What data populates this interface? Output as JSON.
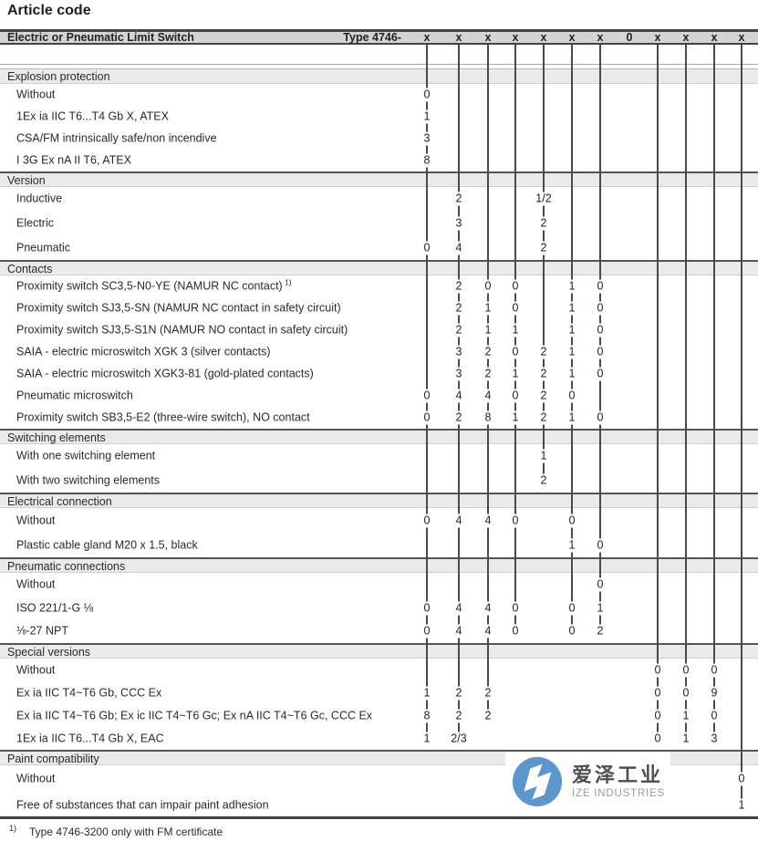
{
  "page_title": "Article code",
  "table": {
    "header": {
      "product": "Electric or Pneumatic Limit Switch",
      "type_label": "Type 4746-",
      "code_positions": [
        "x",
        "x",
        "x",
        "x",
        "x",
        "x",
        "x",
        "0",
        "x",
        "x",
        "x",
        "x"
      ]
    },
    "sections": [
      {
        "name": "Explosion protection",
        "rows": [
          {
            "label": "Without",
            "values": {
              "1": "0"
            }
          },
          {
            "label": "1Ex ia IIC T6...T4 Gb X, ATEX",
            "values": {
              "1": "1"
            }
          },
          {
            "label": "CSA/FM intrinsically safe/non incendive",
            "values": {
              "1": "3"
            }
          },
          {
            "label": "I 3G Ex nA II T6, ATEX",
            "values": {
              "1": "8"
            }
          }
        ]
      },
      {
        "name": "Version",
        "rows": [
          {
            "label": "Inductive",
            "values": {
              "2": "2",
              "5": "1/2"
            }
          },
          {
            "label": "Electric",
            "values": {
              "2": "3",
              "5": "2"
            }
          },
          {
            "label": "Pneumatic",
            "values": {
              "1": "0",
              "2": "4",
              "5": "2"
            }
          }
        ]
      },
      {
        "name": "Contacts",
        "rows": [
          {
            "label": "Proximity switch SC3,5-N0-YE (NAMUR NC contact)",
            "sup": "1)",
            "values": {
              "2": "2",
              "3": "0",
              "4": "0",
              "6": "1",
              "7": "0"
            }
          },
          {
            "label": "Proximity switch SJ3,5-SN (NAMUR NC contact in safety circuit)",
            "values": {
              "2": "2",
              "3": "1",
              "4": "0",
              "6": "1",
              "7": "0"
            }
          },
          {
            "label": "Proximity switch SJ3,5-S1N (NAMUR NO contact in safety circuit)",
            "values": {
              "2": "2",
              "3": "1",
              "4": "1",
              "6": "1",
              "7": "0"
            }
          },
          {
            "label": "SAIA - electric microswitch XGK 3 (silver contacts)",
            "values": {
              "2": "3",
              "3": "2",
              "4": "0",
              "5": "2",
              "6": "1",
              "7": "0"
            }
          },
          {
            "label": "SAIA - electric microswitch XGK3-81 (gold-plated contacts)",
            "values": {
              "2": "3",
              "3": "2",
              "4": "1",
              "5": "2",
              "6": "1",
              "7": "0"
            }
          },
          {
            "label": "Pneumatic microswitch",
            "values": {
              "1": "0",
              "2": "4",
              "3": "4",
              "4": "0",
              "5": "2",
              "6": "0"
            }
          },
          {
            "label": "Proximity switch SB3,5-E2 (three-wire switch), NO contact",
            "values": {
              "1": "0",
              "2": "2",
              "3": "8",
              "4": "1",
              "5": "2",
              "6": "1",
              "7": "0"
            }
          }
        ]
      },
      {
        "name": "Switching elements",
        "rows": [
          {
            "label": "With one switching element",
            "values": {
              "5": "1"
            }
          },
          {
            "label": "With two switching elements",
            "values": {
              "5": "2"
            }
          }
        ]
      },
      {
        "name": "Electrical connection",
        "rows": [
          {
            "label": "Without",
            "values": {
              "1": "0",
              "2": "4",
              "3": "4",
              "4": "0",
              "6": "0"
            }
          },
          {
            "label": "Plastic cable gland M20 x 1.5, black",
            "values": {
              "6": "1",
              "7": "0"
            }
          }
        ]
      },
      {
        "name": "Pneumatic connections",
        "rows": [
          {
            "label": "Without",
            "values": {
              "7": "0"
            }
          },
          {
            "label": "ISO 221/1-G ⅛",
            "values": {
              "1": "0",
              "2": "4",
              "3": "4",
              "4": "0",
              "6": "0",
              "7": "1"
            }
          },
          {
            "label": "⅛-27 NPT",
            "values": {
              "1": "0",
              "2": "4",
              "3": "4",
              "4": "0",
              "6": "0",
              "7": "2"
            }
          }
        ]
      },
      {
        "name": "Special versions",
        "rows": [
          {
            "label": "Without",
            "values": {
              "9": "0",
              "10": "0",
              "11": "0"
            }
          },
          {
            "label": "Ex ia IIC T4~T6 Gb, CCC Ex",
            "values": {
              "1": "1",
              "2": "2",
              "3": "2",
              "9": "0",
              "10": "0",
              "11": "9"
            }
          },
          {
            "label": "Ex ia IIC T4~T6 Gb; Ex ic IIC T4~T6 Gc; Ex nA IIC T4~T6 Gc, CCC Ex",
            "values": {
              "1": "8",
              "2": "2",
              "3": "2",
              "9": "0",
              "10": "1",
              "11": "0"
            }
          },
          {
            "label": "1Ex ia IIC T6...T4 Gb X, EAC",
            "values": {
              "1": "1",
              "2": "2/3",
              "9": "0",
              "10": "1",
              "11": "3"
            }
          }
        ]
      },
      {
        "name": "Paint compatibility",
        "rows": [
          {
            "label": "Without",
            "values": {
              "12": "0"
            }
          },
          {
            "label": "Free of substances that can impair paint adhesion",
            "values": {
              "12": "1"
            }
          }
        ]
      }
    ],
    "footnote": {
      "marker": "1)",
      "text": "Type 4746-3200 only with FM certificate"
    }
  },
  "logo": {
    "name_cn": "爱泽工业",
    "name_en": "IZE INDUSTRIES",
    "circle_color": "#5d96cb"
  },
  "colors": {
    "header_bar": "#d4d4d4",
    "section_bar": "#eaeaea",
    "rule_dark": "#434343",
    "code_line": "#4a4a4a",
    "text": "#2e2e2e"
  }
}
